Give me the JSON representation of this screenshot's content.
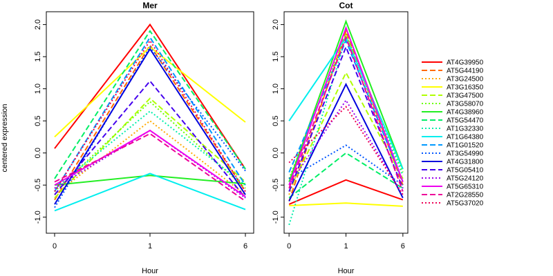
{
  "ylabel": "centered expression",
  "chart_data": {
    "type": "line",
    "x": [
      "0",
      "1",
      "6"
    ],
    "xlabel": "Hour",
    "ylabel": "centered expression",
    "ylim": [
      -1.25,
      2.2
    ],
    "yticks": [
      "-1.0",
      "-0.5",
      "0.0",
      "0.5",
      "1.0",
      "1.5",
      "2.0"
    ],
    "ytick_values": [
      -1.0,
      -0.5,
      0.0,
      0.5,
      1.0,
      1.5,
      2.0
    ],
    "legend": "right",
    "grid": false,
    "series_styles": [
      {
        "name": "AT4G39950",
        "color": "#ff0000",
        "dash": "solid"
      },
      {
        "name": "AT5G44190",
        "color": "#ff6a00",
        "dash": "dashed"
      },
      {
        "name": "AT3G24500",
        "color": "#ffaa00",
        "dash": "dotted"
      },
      {
        "name": "AT3G16350",
        "color": "#ffff00",
        "dash": "solid"
      },
      {
        "name": "AT3G47500",
        "color": "#b0ff00",
        "dash": "dashed"
      },
      {
        "name": "AT3G58070",
        "color": "#6aff00",
        "dash": "dotted"
      },
      {
        "name": "AT4G38960",
        "color": "#22ee22",
        "dash": "solid"
      },
      {
        "name": "AT5G54470",
        "color": "#00ee66",
        "dash": "dashed"
      },
      {
        "name": "AT1G32330",
        "color": "#00eeaa",
        "dash": "dotted"
      },
      {
        "name": "AT1G64380",
        "color": "#00eeee",
        "dash": "solid"
      },
      {
        "name": "AT1G01520",
        "color": "#0099ff",
        "dash": "dashed"
      },
      {
        "name": "AT3G54990",
        "color": "#0055ff",
        "dash": "dotted"
      },
      {
        "name": "AT4G31800",
        "color": "#0000dd",
        "dash": "solid"
      },
      {
        "name": "AT5G05410",
        "color": "#4400ee",
        "dash": "dashed"
      },
      {
        "name": "AT5G24120",
        "color": "#9900ee",
        "dash": "dotted"
      },
      {
        "name": "AT5G65310",
        "color": "#ee00ee",
        "dash": "solid"
      },
      {
        "name": "AT2G28550",
        "color": "#ee0099",
        "dash": "dashed"
      },
      {
        "name": "AT5G37020",
        "color": "#ee0055",
        "dash": "dotted"
      }
    ],
    "panels": [
      {
        "title": "Mer",
        "series": [
          {
            "name": "AT4G39950",
            "values": [
              0.07,
              2.0,
              -0.25
            ]
          },
          {
            "name": "AT5G44190",
            "values": [
              -0.73,
              1.68,
              -0.6
            ]
          },
          {
            "name": "AT3G24500",
            "values": [
              -0.65,
              0.5,
              -0.65
            ]
          },
          {
            "name": "AT3G16350",
            "values": [
              0.25,
              1.65,
              0.48
            ]
          },
          {
            "name": "AT3G47500",
            "values": [
              -0.7,
              0.85,
              -0.45
            ]
          },
          {
            "name": "AT3G58070",
            "values": [
              -0.6,
              0.8,
              -0.55
            ]
          },
          {
            "name": "AT4G38960",
            "values": [
              -0.5,
              -0.35,
              -0.48
            ]
          },
          {
            "name": "AT5G54470",
            "values": [
              -0.4,
              1.9,
              -0.25
            ]
          },
          {
            "name": "AT1G32330",
            "values": [
              -0.55,
              0.65,
              -0.5
            ]
          },
          {
            "name": "AT1G64380",
            "values": [
              -0.9,
              -0.32,
              -0.88
            ]
          },
          {
            "name": "AT1G01520",
            "values": [
              -0.6,
              1.8,
              -0.5
            ]
          },
          {
            "name": "AT3G54990",
            "values": [
              -0.85,
              1.65,
              -0.28
            ]
          },
          {
            "name": "AT4G31800",
            "values": [
              -0.8,
              1.62,
              -0.65
            ]
          },
          {
            "name": "AT5G05410",
            "values": [
              -0.65,
              1.12,
              -0.7
            ]
          },
          {
            "name": "AT5G24120",
            "values": [
              -0.55,
              0.35,
              -0.7
            ]
          },
          {
            "name": "AT5G65310",
            "values": [
              -0.5,
              0.35,
              -0.68
            ]
          },
          {
            "name": "AT2G28550",
            "values": [
              -0.45,
              0.3,
              -0.75
            ]
          },
          {
            "name": "AT5G37020",
            "values": [
              -0.6,
              1.75,
              -0.6
            ]
          }
        ]
      },
      {
        "title": "Cot",
        "series": [
          {
            "name": "AT4G39950",
            "values": [
              -0.8,
              -0.42,
              -0.73
            ]
          },
          {
            "name": "AT5G44190",
            "values": [
              -0.75,
              1.9,
              -0.5
            ]
          },
          {
            "name": "AT3G24500",
            "values": [
              -0.65,
              1.85,
              -0.45
            ]
          },
          {
            "name": "AT3G16350",
            "values": [
              -0.82,
              -0.78,
              -0.83
            ]
          },
          {
            "name": "AT3G47500",
            "values": [
              -0.6,
              1.25,
              -0.4
            ]
          },
          {
            "name": "AT3G58070",
            "values": [
              -0.4,
              1.85,
              -0.3
            ]
          },
          {
            "name": "AT4G38960",
            "values": [
              -0.45,
              2.05,
              -0.25
            ]
          },
          {
            "name": "AT5G54470",
            "values": [
              -0.7,
              0.0,
              -0.55
            ]
          },
          {
            "name": "AT1G32330",
            "values": [
              -1.12,
              1.8,
              -0.35
            ]
          },
          {
            "name": "AT1G64380",
            "values": [
              0.5,
              1.8,
              -0.25
            ]
          },
          {
            "name": "AT1G01520",
            "values": [
              -0.3,
              1.75,
              -0.45
            ]
          },
          {
            "name": "AT3G54990",
            "values": [
              -0.4,
              0.12,
              -0.5
            ]
          },
          {
            "name": "AT4G31800",
            "values": [
              -0.75,
              1.07,
              -0.7
            ]
          },
          {
            "name": "AT5G05410",
            "values": [
              -0.6,
              1.65,
              -0.55
            ]
          },
          {
            "name": "AT5G24120",
            "values": [
              -0.5,
              0.82,
              -0.65
            ]
          },
          {
            "name": "AT5G65310",
            "values": [
              -0.5,
              1.95,
              -0.45
            ]
          },
          {
            "name": "AT2G28550",
            "values": [
              -0.55,
              1.8,
              -0.6
            ]
          },
          {
            "name": "AT5G37020",
            "values": [
              -0.15,
              0.72,
              -0.65
            ]
          }
        ]
      }
    ]
  }
}
